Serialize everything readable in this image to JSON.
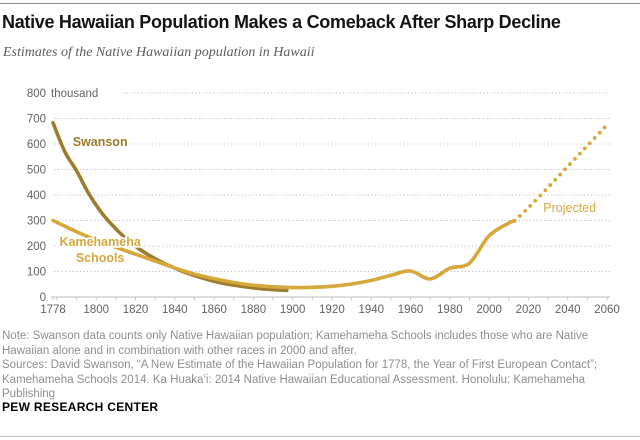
{
  "header": {
    "title": "Native Hawaiian Population Makes a Comeback After Sharp Decline",
    "subtitle": "Estimates of the Native Hawaiian population in Hawaii"
  },
  "chart_data": {
    "type": "line",
    "title": "Estimates of the Native Hawaiian population in Hawaii",
    "xlabel": "",
    "ylabel": "thousand",
    "xlim": [
      1778,
      2060
    ],
    "ylim": [
      0,
      800
    ],
    "ytick_interval": 100,
    "ytick_top_label_suffix": "thousand",
    "xticks": [
      1778,
      1800,
      1820,
      1840,
      1860,
      1880,
      1900,
      1920,
      1940,
      1960,
      1980,
      2000,
      2020,
      2040,
      2060
    ],
    "grid": "dotted-horizontal",
    "colors": {
      "swanson": "#9d7c2d",
      "kamehameha": "#d7a73c",
      "gridline": "#ababab",
      "axis": "#c9c9c9",
      "tick_text": "#636363"
    },
    "series": [
      {
        "name": "Swanson",
        "color": "#9d7c2d",
        "style": "solid",
        "points": [
          [
            1778,
            683
          ],
          [
            1784,
            570
          ],
          [
            1790,
            495
          ],
          [
            1796,
            408
          ],
          [
            1802,
            338
          ],
          [
            1808,
            283
          ],
          [
            1814,
            237
          ],
          [
            1820,
            199
          ],
          [
            1826,
            168
          ],
          [
            1832,
            142
          ],
          [
            1838,
            120
          ],
          [
            1844,
            100
          ],
          [
            1850,
            84
          ],
          [
            1856,
            70
          ],
          [
            1862,
            58
          ],
          [
            1868,
            49
          ],
          [
            1874,
            42
          ],
          [
            1880,
            36
          ],
          [
            1886,
            31
          ],
          [
            1892,
            28
          ],
          [
            1897,
            26
          ]
        ]
      },
      {
        "name": "Kamehameha Schools",
        "color": "#d7a73c",
        "style": "solid",
        "points": [
          [
            1778,
            300
          ],
          [
            1790,
            256
          ],
          [
            1800,
            223
          ],
          [
            1810,
            195
          ],
          [
            1820,
            168
          ],
          [
            1830,
            141
          ],
          [
            1840,
            114
          ],
          [
            1850,
            90
          ],
          [
            1860,
            72
          ],
          [
            1870,
            57
          ],
          [
            1880,
            46
          ],
          [
            1890,
            40
          ],
          [
            1900,
            37
          ],
          [
            1910,
            38
          ],
          [
            1920,
            42
          ],
          [
            1930,
            51
          ],
          [
            1940,
            65
          ],
          [
            1950,
            85
          ],
          [
            1960,
            102
          ],
          [
            1970,
            71
          ],
          [
            1980,
            113
          ],
          [
            1990,
            133
          ],
          [
            2000,
            240
          ],
          [
            2010,
            290
          ],
          [
            2013,
            299
          ]
        ]
      },
      {
        "name": "Projected",
        "color": "#d7a73c",
        "style": "dotted",
        "points": [
          [
            2013,
            299
          ],
          [
            2020,
            350
          ],
          [
            2030,
            430
          ],
          [
            2040,
            512
          ],
          [
            2050,
            593
          ],
          [
            2060,
            675
          ]
        ]
      }
    ],
    "annotations": [
      {
        "lines": [
          "Swanson"
        ],
        "year": 1802,
        "value": 607,
        "color": "#9d7c2d",
        "bold": true
      },
      {
        "lines": [
          "Kamehameha",
          "Schools"
        ],
        "year": 1802,
        "value": 216,
        "color": "#d7a73c",
        "bold": true
      },
      {
        "lines": [
          "Projected"
        ],
        "year": 2041,
        "value": 350,
        "color": "#d7a73c",
        "bold": false
      }
    ]
  },
  "footer": {
    "note": "Note: Swanson data counts only Native Hawaiian population; Kamehameha Schools includes those who are Native Hawaiian alone and in combination with other races in 2000 and after.",
    "sources": "Sources: David Swanson, “A New Estimate of the Hawaiian Population for 1778, the Year of First European Contact”; Kamehameha Schools 2014. Ka Huakaʻi: 2014 Native Hawaiian Educational Assessment. Honolulu: Kamehameha Publishing",
    "brand": "PEW RESEARCH CENTER"
  }
}
